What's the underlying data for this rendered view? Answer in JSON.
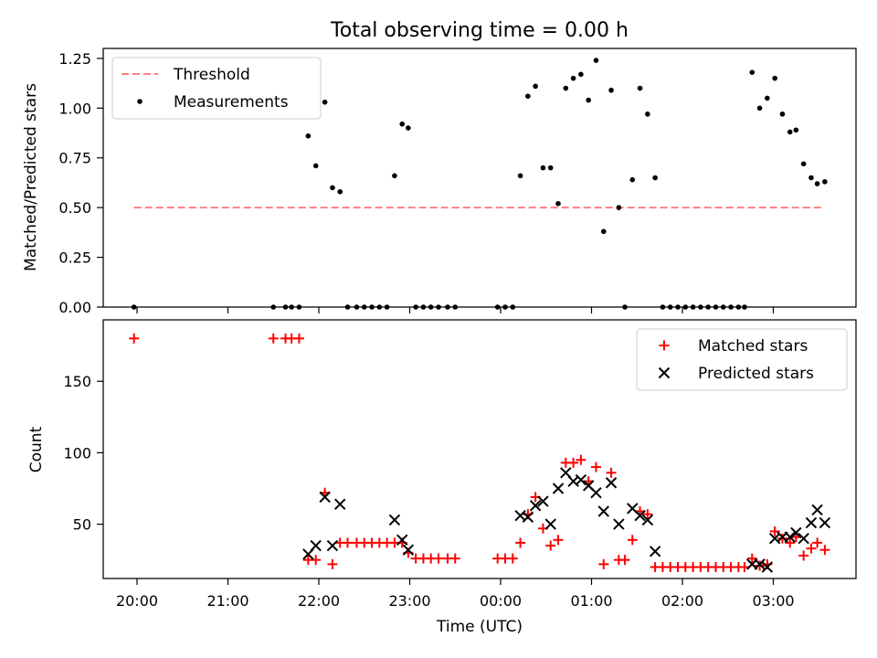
{
  "title": "Total observing time = 0.00 h",
  "chart_data": [
    {
      "type": "scatter",
      "ylabel": "Matched/Predicted stars",
      "xlabel": "",
      "ylim": [
        0,
        1.3
      ],
      "yticks": [
        0,
        0.25,
        0.5,
        0.75,
        1.0,
        1.25
      ],
      "ytick_labels": [
        "0.00",
        "0.25",
        "0.50",
        "0.75",
        "1.00",
        "1.25"
      ],
      "legend_position": "upper-left",
      "threshold": {
        "name": "Threshold",
        "value": 0.5,
        "x_start": "19:58",
        "x_end": "03:32",
        "color": "#ff8080",
        "style": "dashed"
      },
      "series": [
        {
          "name": "Measurements",
          "color": "#000000",
          "marker": "dot",
          "points": [
            [
              "19:58",
              0
            ],
            [
              "21:30",
              0
            ],
            [
              "21:38",
              0
            ],
            [
              "21:42",
              0
            ],
            [
              "21:47",
              0
            ],
            [
              "21:53",
              0.86
            ],
            [
              "21:58",
              0.71
            ],
            [
              "22:04",
              1.03
            ],
            [
              "22:09",
              0.6
            ],
            [
              "22:14",
              0.58
            ],
            [
              "22:19",
              0
            ],
            [
              "22:25",
              0
            ],
            [
              "22:30",
              0
            ],
            [
              "22:35",
              0
            ],
            [
              "22:40",
              0
            ],
            [
              "22:45",
              0
            ],
            [
              "22:50",
              0.66
            ],
            [
              "22:55",
              0.92
            ],
            [
              "22:59",
              0.9
            ],
            [
              "23:04",
              0
            ],
            [
              "23:09",
              0
            ],
            [
              "23:14",
              0
            ],
            [
              "23:19",
              0
            ],
            [
              "23:25",
              0
            ],
            [
              "23:30",
              0
            ],
            [
              "23:58",
              0
            ],
            [
              "00:03",
              0
            ],
            [
              "00:08",
              0
            ],
            [
              "00:13",
              0.66
            ],
            [
              "00:18",
              1.06
            ],
            [
              "00:23",
              1.11
            ],
            [
              "00:28",
              0.7
            ],
            [
              "00:33",
              0.7
            ],
            [
              "00:38",
              0.52
            ],
            [
              "00:43",
              1.1
            ],
            [
              "00:48",
              1.15
            ],
            [
              "00:53",
              1.17
            ],
            [
              "00:58",
              1.04
            ],
            [
              "01:03",
              1.24
            ],
            [
              "01:08",
              0.38
            ],
            [
              "01:13",
              1.09
            ],
            [
              "01:18",
              0.5
            ],
            [
              "01:22",
              0
            ],
            [
              "01:27",
              0.64
            ],
            [
              "01:32",
              1.1
            ],
            [
              "01:37",
              0.97
            ],
            [
              "01:42",
              0.65
            ],
            [
              "01:47",
              0
            ],
            [
              "01:52",
              0
            ],
            [
              "01:57",
              0
            ],
            [
              "02:02",
              0
            ],
            [
              "02:07",
              0
            ],
            [
              "02:12",
              0
            ],
            [
              "02:17",
              0
            ],
            [
              "02:22",
              0
            ],
            [
              "02:27",
              0
            ],
            [
              "02:32",
              0
            ],
            [
              "02:37",
              0
            ],
            [
              "02:41",
              0
            ],
            [
              "02:46",
              1.18
            ],
            [
              "02:51",
              1.0
            ],
            [
              "02:56",
              1.05
            ],
            [
              "03:01",
              1.15
            ],
            [
              "03:06",
              0.97
            ],
            [
              "03:11",
              0.88
            ],
            [
              "03:15",
              0.89
            ],
            [
              "03:20",
              0.72
            ],
            [
              "03:25",
              0.65
            ],
            [
              "03:29",
              0.62
            ],
            [
              "03:34",
              0.63
            ]
          ]
        }
      ]
    },
    {
      "type": "scatter",
      "ylabel": "Count",
      "xlabel": "Time (UTC)",
      "ylim": [
        12,
        193
      ],
      "yticks": [
        50,
        100,
        150
      ],
      "ytick_labels": [
        "50",
        "100",
        "150"
      ],
      "xticks": [
        "20:00",
        "21:00",
        "22:00",
        "23:00",
        "00:00",
        "01:00",
        "02:00",
        "03:00"
      ],
      "legend_position": "upper-right",
      "series": [
        {
          "name": "Matched stars",
          "color": "#ff0000",
          "marker": "plus",
          "points": [
            [
              "19:58",
              180
            ],
            [
              "21:30",
              180
            ],
            [
              "21:38",
              180
            ],
            [
              "21:42",
              180
            ],
            [
              "21:47",
              180
            ],
            [
              "21:53",
              25
            ],
            [
              "21:58",
              25
            ],
            [
              "22:04",
              72
            ],
            [
              "22:09",
              22
            ],
            [
              "22:14",
              37
            ],
            [
              "22:19",
              37
            ],
            [
              "22:25",
              37
            ],
            [
              "22:30",
              37
            ],
            [
              "22:35",
              37
            ],
            [
              "22:40",
              37
            ],
            [
              "22:45",
              37
            ],
            [
              "22:50",
              37
            ],
            [
              "22:55",
              37
            ],
            [
              "22:59",
              30
            ],
            [
              "23:04",
              26
            ],
            [
              "23:09",
              26
            ],
            [
              "23:14",
              26
            ],
            [
              "23:19",
              26
            ],
            [
              "23:25",
              26
            ],
            [
              "23:30",
              26
            ],
            [
              "23:58",
              26
            ],
            [
              "00:03",
              26
            ],
            [
              "00:08",
              26
            ],
            [
              "00:13",
              37
            ],
            [
              "00:18",
              57
            ],
            [
              "00:23",
              69
            ],
            [
              "00:28",
              47
            ],
            [
              "00:33",
              35
            ],
            [
              "00:38",
              39
            ],
            [
              "00:43",
              93
            ],
            [
              "00:48",
              93
            ],
            [
              "00:53",
              95
            ],
            [
              "00:58",
              80
            ],
            [
              "01:03",
              90
            ],
            [
              "01:08",
              22
            ],
            [
              "01:13",
              86
            ],
            [
              "01:18",
              25
            ],
            [
              "01:22",
              25
            ],
            [
              "01:27",
              39
            ],
            [
              "01:32",
              59
            ],
            [
              "01:37",
              57
            ],
            [
              "01:42",
              20
            ],
            [
              "01:47",
              20
            ],
            [
              "01:52",
              20
            ],
            [
              "01:57",
              20
            ],
            [
              "02:02",
              20
            ],
            [
              "02:07",
              20
            ],
            [
              "02:12",
              20
            ],
            [
              "02:17",
              20
            ],
            [
              "02:22",
              20
            ],
            [
              "02:27",
              20
            ],
            [
              "02:32",
              20
            ],
            [
              "02:37",
              20
            ],
            [
              "02:41",
              20
            ],
            [
              "02:46",
              26
            ],
            [
              "02:51",
              21
            ],
            [
              "02:56",
              22
            ],
            [
              "03:01",
              45
            ],
            [
              "03:06",
              40
            ],
            [
              "03:11",
              37
            ],
            [
              "03:15",
              41
            ],
            [
              "03:20",
              28
            ],
            [
              "03:25",
              33
            ],
            [
              "03:29",
              37
            ],
            [
              "03:34",
              32
            ]
          ]
        },
        {
          "name": "Predicted stars",
          "color": "#000000",
          "marker": "x",
          "points": [
            [
              "21:53",
              29
            ],
            [
              "21:58",
              35
            ],
            [
              "22:04",
              69
            ],
            [
              "22:09",
              35
            ],
            [
              "22:14",
              64
            ],
            [
              "22:50",
              53
            ],
            [
              "22:55",
              39
            ],
            [
              "22:59",
              32
            ],
            [
              "00:13",
              56
            ],
            [
              "00:18",
              55
            ],
            [
              "00:23",
              63
            ],
            [
              "00:28",
              66
            ],
            [
              "00:33",
              50
            ],
            [
              "00:38",
              75
            ],
            [
              "00:43",
              86
            ],
            [
              "00:48",
              80
            ],
            [
              "00:53",
              81
            ],
            [
              "00:58",
              77
            ],
            [
              "01:03",
              72
            ],
            [
              "01:08",
              59
            ],
            [
              "01:13",
              79
            ],
            [
              "01:18",
              50
            ],
            [
              "01:27",
              61
            ],
            [
              "01:32",
              56
            ],
            [
              "01:37",
              53
            ],
            [
              "01:42",
              31
            ],
            [
              "02:46",
              22
            ],
            [
              "02:51",
              22
            ],
            [
              "02:56",
              20
            ],
            [
              "03:01",
              40
            ],
            [
              "03:06",
              41
            ],
            [
              "03:11",
              41
            ],
            [
              "03:15",
              44
            ],
            [
              "03:20",
              40
            ],
            [
              "03:25",
              51
            ],
            [
              "03:29",
              60
            ],
            [
              "03:34",
              51
            ]
          ]
        }
      ]
    }
  ]
}
